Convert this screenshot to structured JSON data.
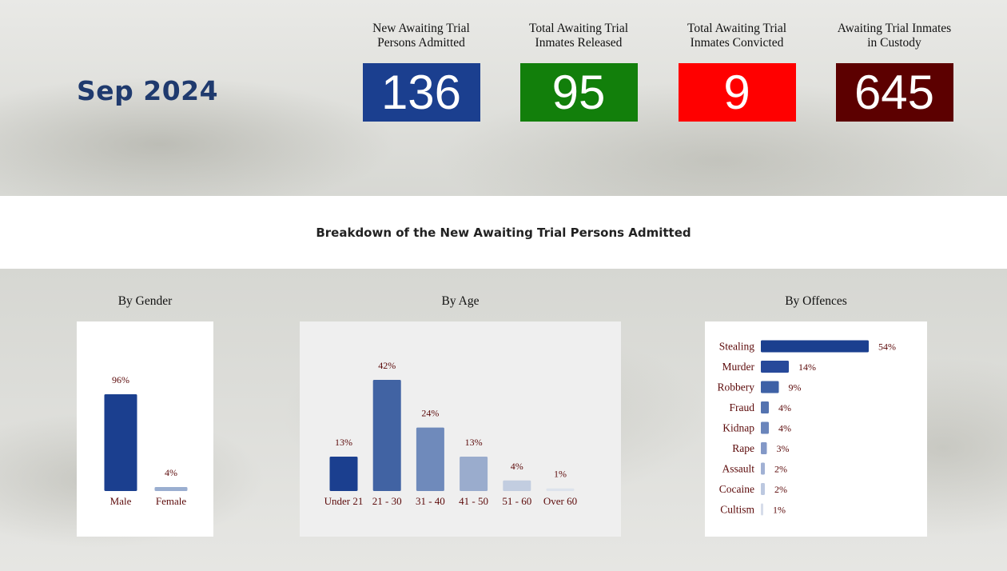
{
  "period": "Sep 2024",
  "kpis": [
    {
      "label_1": "New Awaiting Trial",
      "label_2": "Persons Admitted",
      "value": "136",
      "color": "#1b3f8f"
    },
    {
      "label_1": "Total Awaiting Trial",
      "label_2": "Inmates Released",
      "value": "95",
      "color": "#127f0b"
    },
    {
      "label_1": "Total Awaiting Trial",
      "label_2": "Inmates Convicted",
      "value": "9",
      "color": "#ff0000"
    },
    {
      "label_1": "Awaiting Trial Inmates",
      "label_2": "in Custody",
      "value": "645",
      "color": "#5c0000"
    }
  ],
  "section_title": "Breakdown of the New Awaiting Trial Persons Admitted",
  "chart_data": [
    {
      "type": "bar",
      "title": "By Gender",
      "categories": [
        "Male",
        "Female"
      ],
      "values": [
        96,
        4
      ],
      "value_suffix": "%",
      "colors": [
        "#1b3f8f",
        "#9aaed0"
      ]
    },
    {
      "type": "bar",
      "title": "By Age",
      "categories": [
        "Under 21",
        "21 - 30",
        "31 - 40",
        "41 - 50",
        "51 - 60",
        "Over 60"
      ],
      "values": [
        13,
        42,
        24,
        13,
        4,
        1
      ],
      "value_suffix": "%",
      "colors": [
        "#1b3f8f",
        "#4163a3",
        "#6f8abb",
        "#9aaccd",
        "#c2cde0",
        "#dde3ec"
      ]
    },
    {
      "type": "bar",
      "orientation": "horizontal",
      "title": "By Offences",
      "categories": [
        "Stealing",
        "Murder",
        "Robbery",
        "Fraud",
        "Kidnap",
        "Rape",
        "Assault",
        "Cocaine",
        "Cultism"
      ],
      "values": [
        54,
        14,
        9,
        4,
        4,
        3,
        2,
        2,
        1
      ],
      "value_suffix": "%",
      "colors": [
        "#1b3f8f",
        "#27499a",
        "#3e61a6",
        "#5473b0",
        "#6a85bb",
        "#8398c7",
        "#a1b1d4",
        "#bcc8e0",
        "#d6dcea"
      ]
    }
  ]
}
